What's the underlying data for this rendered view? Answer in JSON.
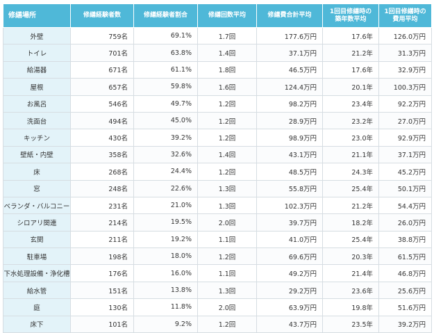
{
  "headers": [
    {
      "line1": "修繕場所",
      "line2": ""
    },
    {
      "line1": "修繕経験者数",
      "line2": ""
    },
    {
      "line1": "修繕経験者割合",
      "line2": ""
    },
    {
      "line1": "修繕回数平均",
      "line2": ""
    },
    {
      "line1": "修繕費合計平均",
      "line2": ""
    },
    {
      "line1": "1回目修繕時の",
      "line2": "築年数平均"
    },
    {
      "line1": "1回目修繕時の",
      "line2": "費用平均"
    }
  ],
  "rows": [
    {
      "place": "外壁",
      "count": "759名",
      "ratio": "69.1%",
      "times": "1.7回",
      "total": "177.6万円",
      "age": "17.6年",
      "cost": "126.0万円"
    },
    {
      "place": "トイレ",
      "count": "701名",
      "ratio": "63.8%",
      "times": "1.4回",
      "total": "37.1万円",
      "age": "21.2年",
      "cost": "31.3万円"
    },
    {
      "place": "給湯器",
      "count": "671名",
      "ratio": "61.1%",
      "times": "1.8回",
      "total": "46.5万円",
      "age": "17.6年",
      "cost": "32.9万円"
    },
    {
      "place": "屋根",
      "count": "657名",
      "ratio": "59.8%",
      "times": "1.6回",
      "total": "124.4万円",
      "age": "20.1年",
      "cost": "100.3万円"
    },
    {
      "place": "お風呂",
      "count": "546名",
      "ratio": "49.7%",
      "times": "1.2回",
      "total": "98.2万円",
      "age": "23.4年",
      "cost": "92.2万円"
    },
    {
      "place": "洗面台",
      "count": "494名",
      "ratio": "45.0%",
      "times": "1.2回",
      "total": "28.9万円",
      "age": "23.2年",
      "cost": "27.0万円"
    },
    {
      "place": "キッチン",
      "count": "430名",
      "ratio": "39.2%",
      "times": "1.2回",
      "total": "98.9万円",
      "age": "23.0年",
      "cost": "92.9万円"
    },
    {
      "place": "壁紙・内壁",
      "count": "358名",
      "ratio": "32.6%",
      "times": "1.4回",
      "total": "43.1万円",
      "age": "21.1年",
      "cost": "37.1万円"
    },
    {
      "place": "床",
      "count": "268名",
      "ratio": "24.4%",
      "times": "1.2回",
      "total": "48.5万円",
      "age": "24.3年",
      "cost": "45.2万円"
    },
    {
      "place": "窓",
      "count": "248名",
      "ratio": "22.6%",
      "times": "1.3回",
      "total": "55.8万円",
      "age": "25.4年",
      "cost": "50.1万円"
    },
    {
      "place": "ベランダ・バルコニー",
      "count": "231名",
      "ratio": "21.0%",
      "times": "1.3回",
      "total": "102.3万円",
      "age": "21.2年",
      "cost": "54.4万円"
    },
    {
      "place": "シロアリ関連",
      "count": "214名",
      "ratio": "19.5%",
      "times": "2.0回",
      "total": "39.7万円",
      "age": "18.2年",
      "cost": "26.0万円"
    },
    {
      "place": "玄関",
      "count": "211名",
      "ratio": "19.2%",
      "times": "1.1回",
      "total": "41.0万円",
      "age": "25.4年",
      "cost": "38.8万円"
    },
    {
      "place": "駐車場",
      "count": "198名",
      "ratio": "18.0%",
      "times": "1.2回",
      "total": "69.6万円",
      "age": "20.3年",
      "cost": "61.5万円"
    },
    {
      "place": "下水処理設備・浄化槽",
      "count": "176名",
      "ratio": "16.0%",
      "times": "1.1回",
      "total": "49.2万円",
      "age": "21.4年",
      "cost": "46.8万円"
    },
    {
      "place": "給水管",
      "count": "151名",
      "ratio": "13.8%",
      "times": "1.3回",
      "total": "29.2万円",
      "age": "23.6年",
      "cost": "25.6万円"
    },
    {
      "place": "庭",
      "count": "130名",
      "ratio": "11.8%",
      "times": "2.0回",
      "total": "63.9万円",
      "age": "19.8年",
      "cost": "51.6万円"
    },
    {
      "place": "床下",
      "count": "101名",
      "ratio": "9.2%",
      "times": "1.2回",
      "total": "43.7万円",
      "age": "23.5年",
      "cost": "39.2万円"
    }
  ]
}
